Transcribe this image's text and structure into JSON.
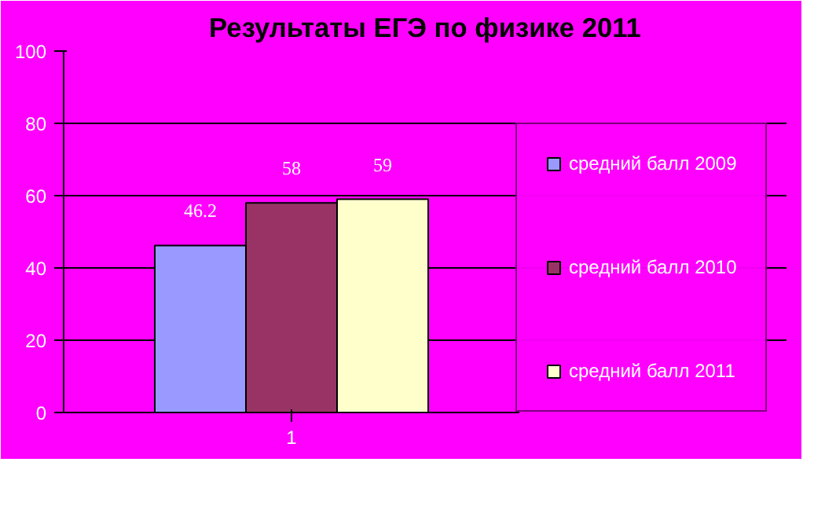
{
  "chart_data": {
    "type": "bar",
    "title": "Результаты ЕГЭ по физике 2011",
    "categories": [
      "1"
    ],
    "series": [
      {
        "name": "средний балл 2009",
        "color": "#9999ff",
        "values": [
          46.2
        ]
      },
      {
        "name": "средний балл 2010",
        "color": "#993366",
        "values": [
          58
        ]
      },
      {
        "name": "средний балл 2011",
        "color": "#ffffcc",
        "values": [
          59
        ]
      }
    ],
    "ylim": [
      0,
      100
    ],
    "yticks": [
      0,
      20,
      40,
      60,
      80,
      100
    ],
    "grid": "y",
    "legend": "right",
    "data_labels": true
  }
}
